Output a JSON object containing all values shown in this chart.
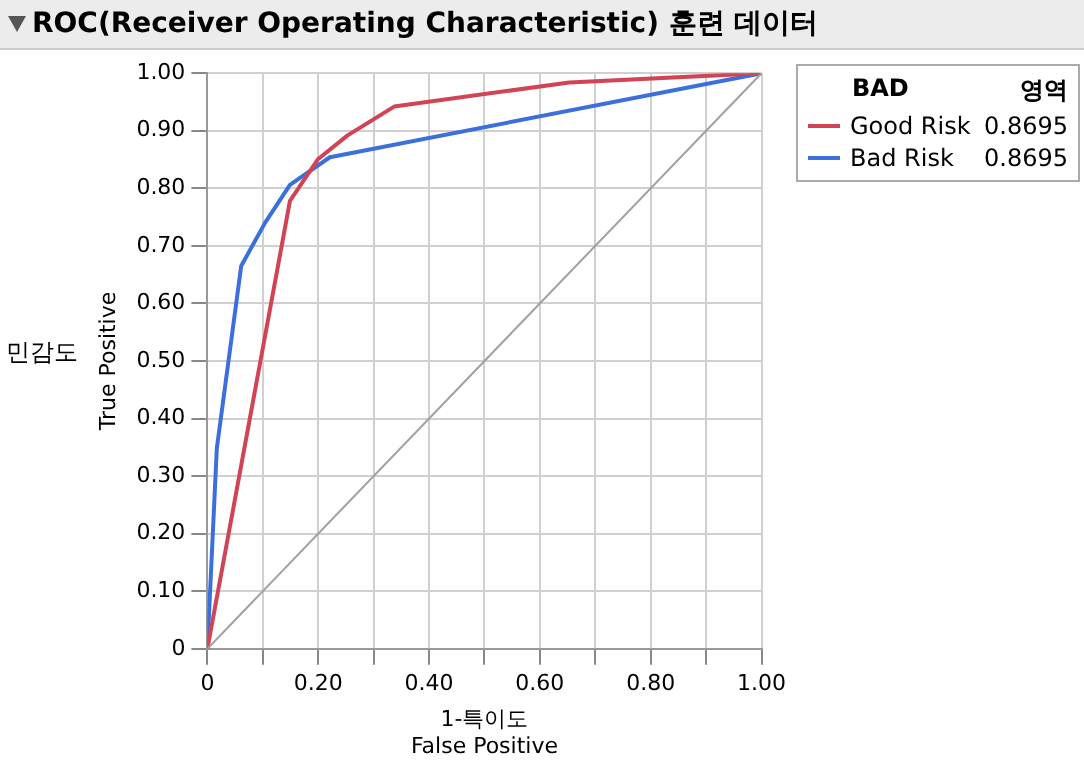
{
  "chart_data": {
    "type": "line",
    "title": "ROC(Receiver Operating Characteristic) 훈련 데이터",
    "xlabel": "1-특이도\nFalse Positive",
    "ylabel": "민감도\nTrue Positive",
    "legend_title": "BAD",
    "legend": "right",
    "grid": true,
    "marker": "none",
    "line_style": "solid",
    "annotations": [
      "영역",
      "0.8695",
      "0.8695"
    ],
    "xlim": [
      0,
      1
    ],
    "ylim": [
      0,
      1
    ],
    "xticks": [
      {
        "value": 0,
        "label": "0"
      },
      {
        "value": 0.1,
        "label": null
      },
      {
        "value": 0.2,
        "label": "0.20"
      },
      {
        "value": 0.3,
        "label": null
      },
      {
        "value": 0.4,
        "label": "0.40"
      },
      {
        "value": 0.5,
        "label": null
      },
      {
        "value": 0.6,
        "label": "0.60"
      },
      {
        "value": 0.7,
        "label": null
      },
      {
        "value": 0.8,
        "label": "0.80"
      },
      {
        "value": 0.9,
        "label": null
      },
      {
        "value": 1,
        "label": "1.00"
      }
    ],
    "yticks": [
      {
        "value": 0,
        "label": "0"
      },
      {
        "value": 0.1,
        "label": "0.10"
      },
      {
        "value": 0.2,
        "label": "0.20"
      },
      {
        "value": 0.3,
        "label": "0.30"
      },
      {
        "value": 0.4,
        "label": "0.40"
      },
      {
        "value": 0.5,
        "label": "0.50"
      },
      {
        "value": 0.6,
        "label": "0.60"
      },
      {
        "value": 0.7,
        "label": "0.70"
      },
      {
        "value": 0.8,
        "label": "0.80"
      },
      {
        "value": 0.9,
        "label": "0.90"
      },
      {
        "value": 1,
        "label": "1.00"
      }
    ],
    "series": [
      {
        "color": "#a0a0a0",
        "x": [
          0,
          1
        ],
        "values": [
          0,
          1
        ]
      },
      {
        "name": "Good Risk",
        "color": "#d04455",
        "x": [
          0,
          0.149,
          0.2,
          0.253,
          0.337,
          0.653,
          1
        ],
        "values": [
          0,
          0.778,
          0.851,
          0.892,
          0.942,
          0.984,
          1
        ]
      },
      {
        "name": "Bad Risk",
        "color": "#3a6fdc",
        "x": [
          0,
          0.017,
          0.061,
          0.104,
          0.149,
          0.221,
          1
        ],
        "values": [
          0,
          0.348,
          0.665,
          0.74,
          0.806,
          0.854,
          1
        ]
      }
    ]
  }
}
